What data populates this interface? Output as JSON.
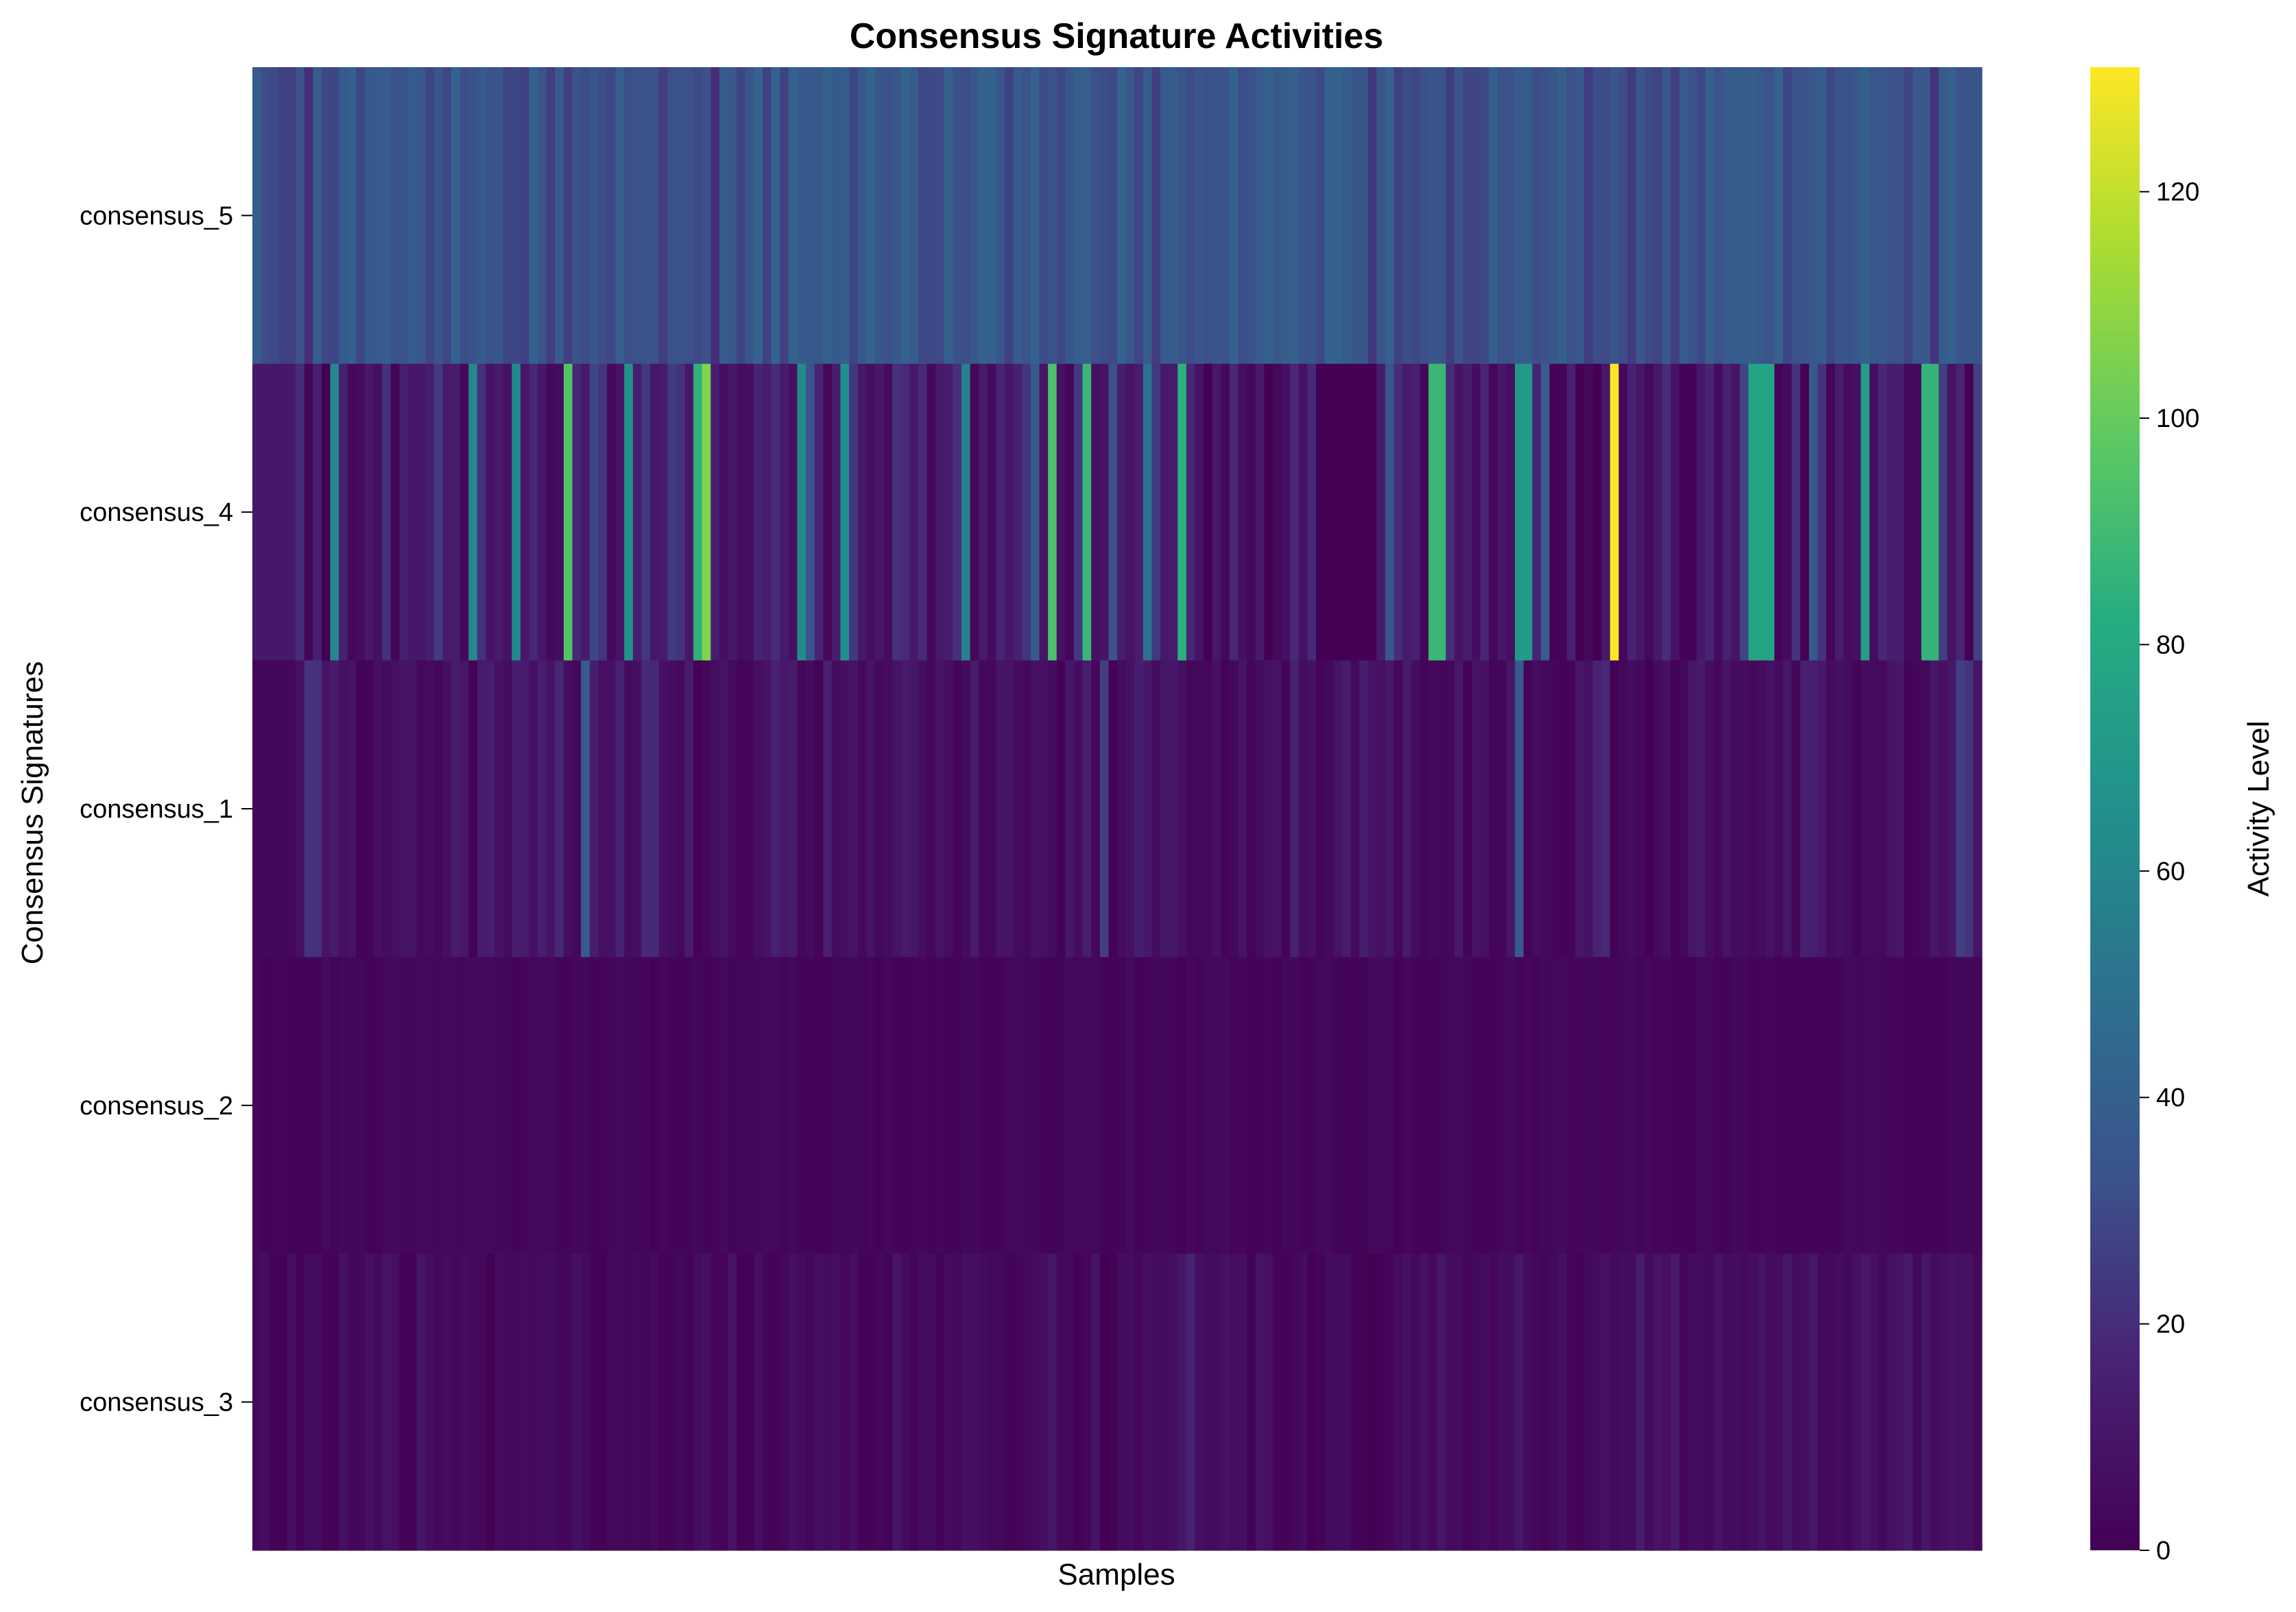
{
  "chart_data": {
    "type": "heatmap",
    "title": "Consensus Signature Activities",
    "xlabel": "Samples",
    "ylabel": "Consensus Signatures",
    "colorbar_label": "Activity Level",
    "colormap": "viridis",
    "value_range": [
      0,
      131
    ],
    "colorbar_ticks": [
      "0",
      "20",
      "40",
      "60",
      "80",
      "100",
      "120"
    ],
    "rows": [
      "consensus_5",
      "consensus_4",
      "consensus_1",
      "consensus_2",
      "consensus_3"
    ],
    "n_samples": 200,
    "values": [
      [
        38,
        31,
        30,
        27,
        27,
        33,
        20,
        38,
        29,
        29,
        37,
        40,
        29,
        37,
        37,
        38,
        34,
        34,
        39,
        36,
        28,
        35,
        29,
        42,
        31,
        34,
        37,
        34,
        36,
        28,
        29,
        27,
        40,
        34,
        26,
        37,
        26,
        34,
        31,
        35,
        31,
        29,
        39,
        31,
        33,
        34,
        33,
        26,
        32,
        34,
        32,
        30,
        32,
        20,
        38,
        36,
        28,
        35,
        41,
        27,
        42,
        27,
        42,
        37,
        37,
        35,
        42,
        37,
        39,
        29,
        36,
        41,
        35,
        33,
        36,
        42,
        38,
        29,
        30,
        30,
        40,
        33,
        31,
        36,
        41,
        41,
        35,
        27,
        37,
        34,
        41,
        31,
        33,
        29,
        36,
        39,
        40,
        32,
        31,
        30,
        41,
        35,
        28,
        38,
        26,
        37,
        38,
        35,
        31,
        35,
        32,
        34,
        33,
        42,
        31,
        33,
        38,
        42,
        36,
        39,
        40,
        35,
        34,
        30,
        42,
        41,
        38,
        35,
        35,
        24,
        35,
        41,
        27,
        31,
        29,
        32,
        35,
        34,
        25,
        35,
        28,
        28,
        30,
        40,
        32,
        33,
        38,
        38,
        31,
        33,
        36,
        40,
        32,
        36,
        25,
        31,
        30,
        35,
        31,
        25,
        35,
        30,
        28,
        36,
        26,
        37,
        34,
        29,
        40,
        33,
        37,
        38,
        38,
        38,
        36,
        33,
        41,
        28,
        33,
        33,
        36,
        38,
        29,
        34,
        34,
        36,
        40,
        35,
        36,
        33,
        33,
        28,
        36,
        36,
        22,
        38,
        40,
        34,
        35,
        34
      ],
      [
        11,
        11,
        11,
        11,
        11,
        20,
        2,
        15,
        0,
        61,
        15,
        4,
        5,
        11,
        7,
        21,
        2,
        14,
        11,
        11,
        14,
        25,
        12,
        13,
        4,
        61,
        21,
        9,
        12,
        8,
        62,
        11,
        18,
        10,
        4,
        5,
        95,
        18,
        12,
        29,
        23,
        4,
        9,
        67,
        14,
        24,
        10,
        12,
        25,
        22,
        11,
        85,
        106,
        13,
        6,
        11,
        6,
        7,
        17,
        14,
        20,
        12,
        7,
        62,
        34,
        17,
        3,
        14,
        64,
        24,
        11,
        6,
        11,
        5,
        21,
        19,
        11,
        19,
        3,
        12,
        13,
        21,
        57,
        4,
        12,
        5,
        17,
        11,
        15,
        23,
        37,
        10,
        93,
        8,
        3,
        24,
        88,
        8,
        9,
        33,
        14,
        9,
        13,
        49,
        24,
        11,
        13,
        84,
        18,
        9,
        0,
        11,
        4,
        18,
        7,
        4,
        12,
        0,
        4,
        8,
        18,
        8,
        19,
        0,
        0,
        0,
        0,
        0,
        0,
        0,
        13,
        35,
        20,
        12,
        15,
        3,
        88,
        88,
        20,
        9,
        13,
        6,
        17,
        3,
        11,
        7,
        71,
        71,
        16,
        39,
        1,
        2,
        15,
        0,
        4,
        0,
        11,
        131,
        4,
        16,
        10,
        4,
        11,
        20,
        8,
        1,
        2,
        11,
        17,
        5,
        15,
        9,
        28,
        77,
        77,
        77,
        2,
        5,
        22,
        0,
        36,
        22,
        2,
        13,
        5,
        7,
        74,
        6,
        18,
        13,
        14,
        4,
        4,
        86,
        86,
        26,
        9,
        17,
        0,
        27
      ],
      [
        3,
        3,
        3,
        3,
        3,
        8,
        22,
        22,
        9,
        12,
        7,
        9,
        1,
        2,
        7,
        5,
        7,
        9,
        9,
        3,
        5,
        3,
        7,
        13,
        10,
        1,
        12,
        14,
        8,
        5,
        14,
        12,
        8,
        14,
        9,
        18,
        6,
        3,
        38,
        14,
        7,
        8,
        16,
        5,
        7,
        19,
        19,
        8,
        6,
        4,
        12,
        1,
        3,
        6,
        9,
        5,
        2,
        3,
        7,
        9,
        15,
        11,
        13,
        3,
        5,
        1,
        15,
        5,
        7,
        9,
        4,
        9,
        4,
        5,
        9,
        12,
        10,
        6,
        3,
        9,
        6,
        2,
        5,
        12,
        4,
        4,
        9,
        9,
        5,
        4,
        8,
        8,
        6,
        1,
        11,
        6,
        14,
        3,
        26,
        1,
        6,
        8,
        14,
        11,
        6,
        10,
        11,
        7,
        3,
        4,
        3,
        8,
        2,
        4,
        9,
        2,
        5,
        8,
        9,
        2,
        15,
        6,
        8,
        2,
        4,
        9,
        13,
        4,
        14,
        9,
        7,
        10,
        3,
        12,
        6,
        2,
        4,
        3,
        3,
        11,
        1,
        9,
        7,
        2,
        3,
        10,
        37,
        1,
        6,
        4,
        3,
        2,
        2,
        10,
        8,
        16,
        18,
        1,
        4,
        5,
        4,
        0,
        5,
        7,
        1,
        3,
        10,
        12,
        6,
        3,
        9,
        6,
        5,
        4,
        5,
        8,
        5,
        10,
        3,
        15,
        14,
        11,
        5,
        7,
        6,
        2,
        5,
        5,
        4,
        9,
        11,
        1,
        3,
        4,
        10,
        7,
        11,
        26,
        23,
        9
      ],
      [
        3,
        2,
        2,
        3,
        1,
        2,
        2,
        2,
        4,
        2,
        3,
        3,
        3,
        2,
        2,
        3,
        4,
        3,
        3,
        4,
        3,
        3,
        4,
        3,
        3,
        4,
        4,
        4,
        3,
        3,
        2,
        3,
        4,
        4,
        3,
        2,
        2,
        3,
        3,
        2,
        2,
        3,
        4,
        3,
        2,
        3,
        1,
        3,
        2,
        2,
        2,
        3,
        2,
        2,
        4,
        2,
        3,
        3,
        3,
        4,
        3,
        2,
        3,
        2,
        2,
        1,
        1,
        3,
        2,
        3,
        2,
        3,
        1,
        3,
        2,
        1,
        2,
        3,
        1,
        3,
        1,
        2,
        3,
        3,
        2,
        2,
        2,
        3,
        4,
        3,
        3,
        2,
        2,
        2,
        4,
        3,
        4,
        3,
        2,
        2,
        2,
        4,
        2,
        2,
        3,
        3,
        3,
        1,
        3,
        2,
        4,
        3,
        4,
        2,
        3,
        1,
        2,
        3,
        1,
        3,
        3,
        2,
        2,
        3,
        4,
        2,
        1,
        1,
        2,
        4,
        4,
        3,
        1,
        3,
        2,
        2,
        2,
        2,
        3,
        4,
        3,
        2,
        2,
        2,
        3,
        4,
        2,
        3,
        2,
        3,
        3,
        4,
        2,
        3,
        3,
        3,
        2,
        3,
        3,
        4,
        2,
        3,
        2,
        3,
        2,
        2,
        1,
        4,
        3,
        2,
        2,
        3,
        3,
        2,
        2,
        3,
        2,
        2,
        2,
        2,
        2,
        2,
        2,
        2,
        4,
        3,
        3,
        4,
        3,
        2,
        3,
        2,
        1,
        2,
        2,
        2,
        3,
        3,
        3,
        3
      ],
      [
        4,
        6,
        1,
        1,
        7,
        1,
        6,
        6,
        1,
        1,
        8,
        3,
        3,
        7,
        4,
        9,
        7,
        1,
        1,
        10,
        6,
        4,
        5,
        4,
        5,
        4,
        4,
        0,
        5,
        4,
        4,
        5,
        4,
        5,
        6,
        3,
        3,
        8,
        5,
        2,
        1,
        4,
        4,
        3,
        4,
        2,
        4,
        1,
        2,
        4,
        2,
        6,
        8,
        3,
        2,
        9,
        1,
        1,
        7,
        2,
        2,
        3,
        7,
        5,
        3,
        7,
        5,
        7,
        3,
        7,
        2,
        2,
        3,
        2,
        9,
        5,
        2,
        5,
        5,
        1,
        5,
        3,
        7,
        7,
        5,
        4,
        3,
        2,
        2,
        3,
        5,
        7,
        10,
        4,
        3,
        1,
        3,
        9,
        0,
        1,
        6,
        5,
        3,
        7,
        5,
        5,
        7,
        10,
        16,
        7,
        5,
        6,
        8,
        6,
        7,
        1,
        9,
        7,
        2,
        2,
        3,
        5,
        0,
        2,
        5,
        6,
        6,
        2,
        2,
        0,
        1,
        3,
        5,
        8,
        4,
        8,
        4,
        10,
        5,
        5,
        2,
        4,
        6,
        3,
        6,
        6,
        10,
        5,
        3,
        2,
        4,
        8,
        3,
        1,
        4,
        6,
        8,
        4,
        6,
        6,
        13,
        5,
        9,
        7,
        12,
        3,
        6,
        6,
        4,
        9,
        5,
        6,
        4,
        6,
        9,
        5,
        5,
        11,
        6,
        7,
        10,
        4,
        4,
        5,
        4,
        8,
        11,
        8,
        4,
        7,
        9,
        12,
        4,
        10,
        5,
        7,
        9,
        8,
        8,
        4
      ]
    ]
  }
}
